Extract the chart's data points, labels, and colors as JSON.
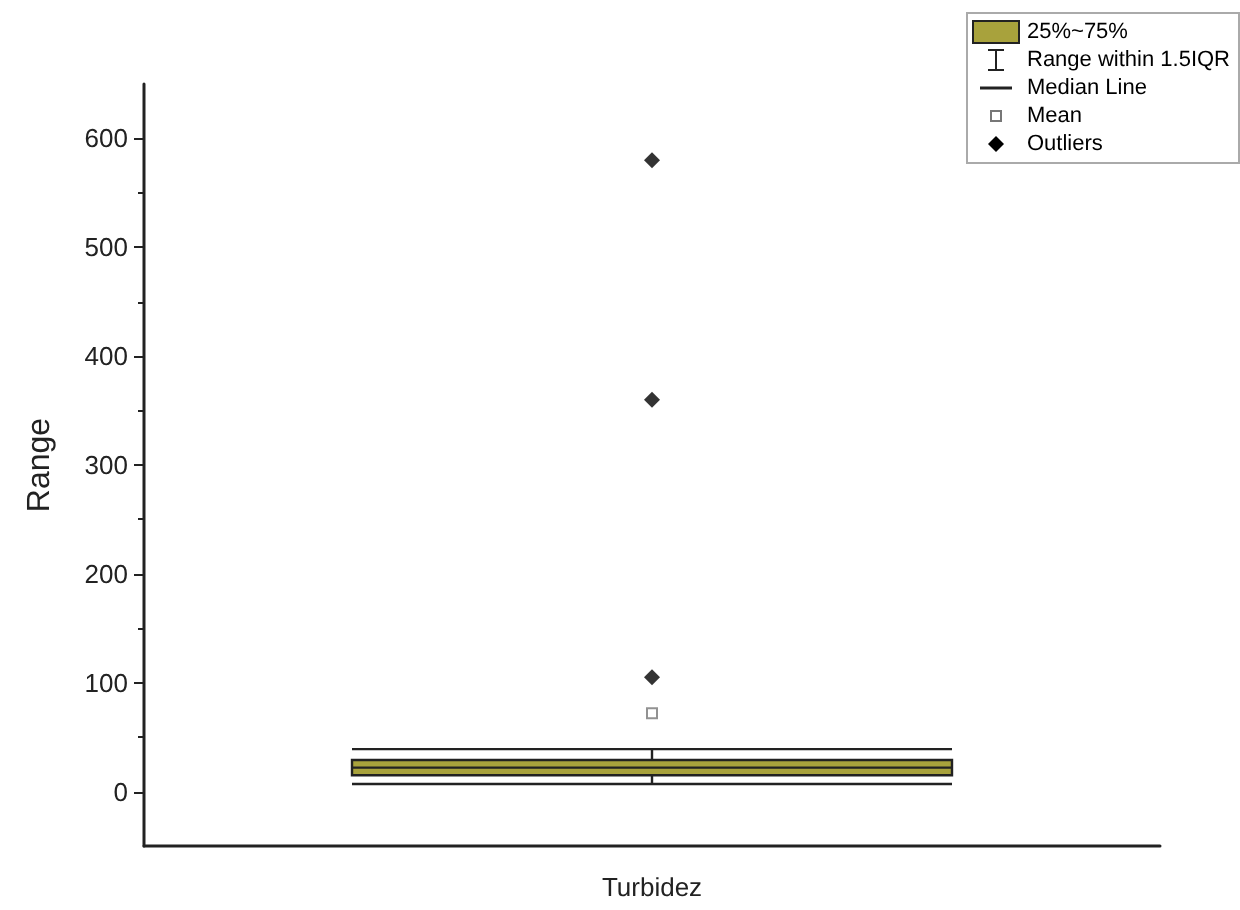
{
  "chart_data": {
    "type": "box",
    "ylabel": "Range",
    "categories": [
      "Turbidez"
    ],
    "series": [
      {
        "name": "25%~75%",
        "color": "#a8a23c",
        "boxes": [
          {
            "low": 7,
            "q1": 15,
            "median": 22,
            "q3": 29,
            "high": 39,
            "mean": 72,
            "outliers": [
              105,
              360,
              580
            ]
          }
        ]
      }
    ],
    "annotations": [
      "Range within 1.5IQR",
      "Median Line",
      "Mean",
      "Outliers"
    ],
    "ylim": [
      -50,
      650
    ],
    "yticks": [
      0,
      100,
      200,
      300,
      400,
      500,
      600
    ],
    "grid": false,
    "legend": "top right"
  }
}
